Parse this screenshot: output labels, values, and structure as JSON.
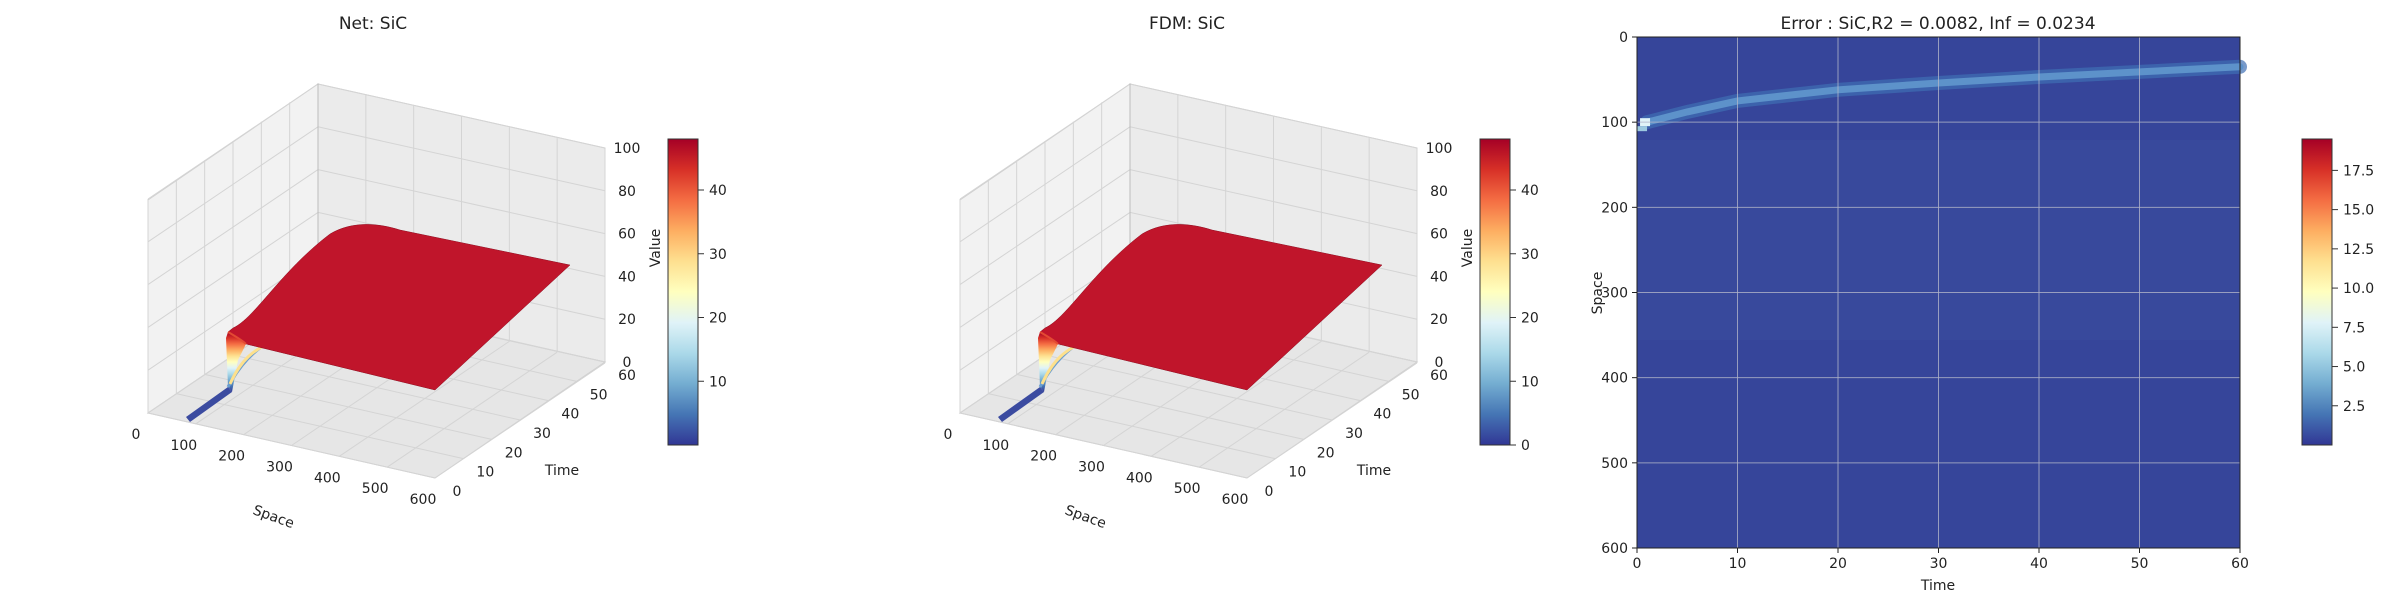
{
  "chart_data": [
    {
      "type": "surface3d",
      "title": "Net: SiC",
      "xlabel": "Space",
      "ylabel": "Time",
      "zlabel": "Value",
      "xlim": [
        0,
        600
      ],
      "ylim": [
        0,
        60
      ],
      "zlim": [
        0,
        100
      ],
      "xticks": [
        0,
        100,
        200,
        300,
        400,
        500,
        600
      ],
      "yticks": [
        0,
        10,
        20,
        30,
        40,
        50,
        60
      ],
      "zticks": [
        0,
        20,
        40,
        60,
        80,
        100
      ],
      "grid": true,
      "surface": {
        "space": [
          0,
          25,
          50,
          75,
          100,
          150,
          200,
          300,
          400,
          500,
          600
        ],
        "time": [
          0,
          2,
          5,
          10,
          20,
          30,
          40,
          50,
          60
        ],
        "plateau_value": 48
      },
      "colorbar": {
        "min": 0,
        "max": 48,
        "ticks": [
          10,
          20,
          30,
          40
        ],
        "colormap": "RdYlBu_r"
      }
    },
    {
      "type": "surface3d",
      "title": "FDM: SiC",
      "xlabel": "Space",
      "ylabel": "Time",
      "zlabel": "Value",
      "xlim": [
        0,
        600
      ],
      "ylim": [
        0,
        60
      ],
      "zlim": [
        0,
        100
      ],
      "xticks": [
        0,
        100,
        200,
        300,
        400,
        500,
        600
      ],
      "yticks": [
        0,
        10,
        20,
        30,
        40,
        50,
        60
      ],
      "zticks": [
        0,
        20,
        40,
        60,
        80,
        100
      ],
      "grid": true,
      "surface": {
        "space": [
          0,
          25,
          50,
          75,
          100,
          150,
          200,
          300,
          400,
          500,
          600
        ],
        "time": [
          0,
          2,
          5,
          10,
          20,
          30,
          40,
          50,
          60
        ],
        "plateau_value": 48
      },
      "colorbar": {
        "min": 0,
        "max": 48,
        "ticks": [
          0,
          10,
          20,
          30,
          40
        ],
        "colormap": "RdYlBu_r"
      }
    },
    {
      "type": "heatmap",
      "title": "Error : SiC,R2 = 0.0082, Inf = 0.0234",
      "xlabel": "Time",
      "ylabel": "Space",
      "xlim": [
        0,
        60
      ],
      "ylim": [
        600,
        0
      ],
      "xticks": [
        0,
        10,
        20,
        30,
        40,
        50,
        60
      ],
      "yticks": [
        0,
        100,
        200,
        300,
        400,
        500,
        600
      ],
      "grid": true,
      "hot_spot": {
        "time": 0.8,
        "space": 100
      },
      "error_band": [
        {
          "time": 1,
          "space": 100
        },
        {
          "time": 5,
          "space": 88
        },
        {
          "time": 10,
          "space": 75
        },
        {
          "time": 20,
          "space": 62
        },
        {
          "time": 30,
          "space": 54
        },
        {
          "time": 40,
          "space": 47
        },
        {
          "time": 50,
          "space": 41
        },
        {
          "time": 60,
          "space": 35
        }
      ],
      "colorbar": {
        "min": 0,
        "max": 19.5,
        "ticks": [
          2.5,
          5.0,
          7.5,
          10.0,
          12.5,
          15.0,
          17.5
        ],
        "colormap": "RdYlBu_r"
      }
    }
  ]
}
